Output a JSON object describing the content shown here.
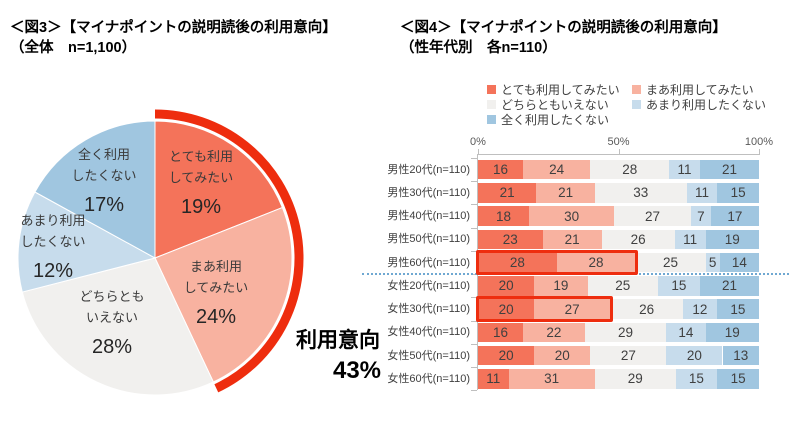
{
  "fig3": {
    "title_line1": "＜図3＞【マイナポイントの説明読後の利用意向】",
    "title_line2": "（全体　n=1,100）",
    "annotation": {
      "label": "利用意向",
      "value": "43%"
    }
  },
  "fig4": {
    "title_line1": "＜図4＞【マイナポイントの説明読後の利用意向】",
    "title_line2": "（性年代別　各n=110）"
  },
  "colors": {
    "series": [
      "#f4735a",
      "#f8b2a0",
      "#f1f0ee",
      "#c7dcec",
      "#a0c6e0"
    ],
    "highlight_red": "#ee2d0e",
    "separator_blue": "#6fa8d2",
    "axis_gray": "#bfbfbf",
    "text_dark": "#404040"
  },
  "chart_data": [
    {
      "type": "pie",
      "title": "＜図3＞【マイナポイントの説明読後の利用意向】（全体 n=1,100）",
      "labels": [
        "とても利用してみたい",
        "まあ利用してみたい",
        "どちらともいえない",
        "あまり利用したくない",
        "全く利用したくない"
      ],
      "label_lines": [
        [
          "とても利用",
          "してみたい"
        ],
        [
          "まあ利用",
          "してみたい"
        ],
        [
          "どちらとも",
          "いえない"
        ],
        [
          "あまり利用",
          "したくない"
        ],
        [
          "全く利用",
          "したくない"
        ]
      ],
      "values": [
        19,
        24,
        28,
        12,
        17
      ],
      "unit": "%",
      "start": "12 o'clock, clockwise",
      "annotation": {
        "label": "利用意向",
        "value": 43,
        "covers_slices": [
          0,
          1
        ],
        "style": "thick red outer arc over first two slices"
      }
    },
    {
      "type": "bar",
      "stacked": true,
      "orientation": "horizontal",
      "title": "＜図4＞【マイナポイントの説明読後の利用意向】（性年代別 各n=110）",
      "categories": [
        "男性20代(n=110)",
        "男性30代(n=110)",
        "男性40代(n=110)",
        "男性50代(n=110)",
        "男性60代(n=110)",
        "女性20代(n=110)",
        "女性30代(n=110)",
        "女性40代(n=110)",
        "女性50代(n=110)",
        "女性60代(n=110)"
      ],
      "series": [
        {
          "name": "とても利用してみたい",
          "values": [
            16,
            21,
            18,
            23,
            28,
            20,
            20,
            16,
            20,
            11
          ]
        },
        {
          "name": "まあ利用してみたい",
          "values": [
            24,
            21,
            30,
            21,
            28,
            19,
            27,
            22,
            20,
            31
          ]
        },
        {
          "name": "どちらともいえない",
          "values": [
            28,
            33,
            27,
            26,
            25,
            25,
            26,
            29,
            27,
            29
          ]
        },
        {
          "name": "あまり利用したくない",
          "values": [
            11,
            11,
            7,
            11,
            5,
            15,
            12,
            14,
            20,
            15
          ]
        },
        {
          "name": "全く利用したくない",
          "values": [
            21,
            15,
            17,
            19,
            14,
            21,
            15,
            19,
            13,
            15
          ]
        }
      ],
      "value_unit": "%",
      "xlim": [
        0,
        100
      ],
      "x_ticks": [
        "0%",
        "50%",
        "100%"
      ],
      "legend_position": "top",
      "highlights": [
        {
          "category": "男性60代(n=110)",
          "series_span": 2,
          "sum": 56
        },
        {
          "category": "女性30代(n=110)",
          "series_span": 2,
          "sum": 47
        }
      ],
      "separator_after": "男性60代(n=110)"
    }
  ]
}
